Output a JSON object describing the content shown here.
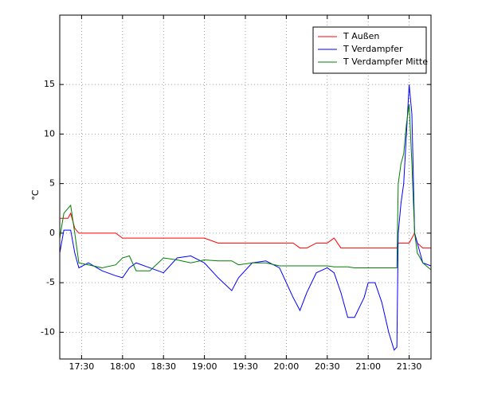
{
  "chart_data": {
    "type": "line",
    "y_label": "°C",
    "x": [
      "17:14",
      "17:17",
      "17:20",
      "17:22",
      "17:25",
      "17:28",
      "17:35",
      "17:45",
      "17:55",
      "18:00",
      "18:05",
      "18:10",
      "18:20",
      "18:30",
      "18:40",
      "18:50",
      "19:00",
      "19:10",
      "19:20",
      "19:25",
      "19:35",
      "19:45",
      "19:55",
      "20:00",
      "20:05",
      "20:10",
      "20:15",
      "20:22",
      "20:30",
      "20:35",
      "20:40",
      "20:45",
      "20:50",
      "20:57",
      "21:00",
      "21:05",
      "21:10",
      "21:15",
      "21:19",
      "21:21",
      "21:22",
      "21:24",
      "21:26",
      "21:28",
      "21:30",
      "21:32",
      "21:34",
      "21:36",
      "21:40",
      "21:46"
    ],
    "series": [
      {
        "name": "T Außen",
        "color": "#ff0000",
        "values": [
          1.5,
          1.5,
          1.5,
          2,
          0.5,
          0,
          0,
          0,
          0,
          -0.5,
          -0.5,
          -0.5,
          -0.5,
          -0.5,
          -0.5,
          -0.5,
          -0.5,
          -1,
          -1,
          -1,
          -1,
          -1,
          -1,
          -1,
          -1,
          -1.5,
          -1.5,
          -1,
          -1,
          -0.5,
          -1.5,
          -1.5,
          -1.5,
          -1.5,
          -1.5,
          -1.5,
          -1.5,
          -1.5,
          -1.5,
          -1.5,
          -1,
          -1,
          -1,
          -1,
          -1,
          -0.5,
          0,
          -1,
          -1.5,
          -1.5
        ]
      },
      {
        "name": "T Verdampfer",
        "color": "#0000ff",
        "values": [
          -2,
          0.3,
          0.3,
          0.3,
          -2,
          -3.5,
          -3,
          -3.8,
          -4.3,
          -4.5,
          -3.5,
          -3,
          -3.5,
          -4,
          -2.5,
          -2.3,
          -3,
          -4.5,
          -5.8,
          -4.5,
          -3,
          -2.8,
          -3.5,
          -5,
          -6.5,
          -7.8,
          -6,
          -4,
          -3.5,
          -4,
          -6,
          -8.5,
          -8.5,
          -6.5,
          -5,
          -5,
          -7,
          -10,
          -11.8,
          -11.5,
          0,
          3,
          5,
          10,
          15,
          12,
          0,
          -1,
          -3,
          -3.3
        ]
      },
      {
        "name": "T Verdampfer Mitte",
        "color": "#008000",
        "values": [
          -0.5,
          2,
          2.5,
          2.8,
          0,
          -3,
          -3.2,
          -3.5,
          -3.2,
          -2.5,
          -2.3,
          -3.8,
          -3.8,
          -2.5,
          -2.7,
          -3,
          -2.7,
          -2.8,
          -2.8,
          -3.2,
          -3,
          -3,
          -3.3,
          -3.3,
          -3.3,
          -3.3,
          -3.3,
          -3.3,
          -3.3,
          -3.4,
          -3.4,
          -3.4,
          -3.5,
          -3.5,
          -3.5,
          -3.5,
          -3.5,
          -3.5,
          -3.5,
          -3.5,
          5,
          7,
          8,
          11,
          13,
          7,
          0,
          -2,
          -3,
          -3.7
        ]
      }
    ],
    "xlim": [
      "17:14",
      "21:46"
    ],
    "xticks": [
      "17:30",
      "18:00",
      "18:30",
      "19:00",
      "19:30",
      "20:00",
      "20:30",
      "21:00",
      "21:30"
    ],
    "ylim": [
      -12.7,
      22
    ],
    "yticks": [
      -10,
      -5,
      0,
      5,
      10,
      15
    ],
    "grid": true,
    "legend": "upper right"
  }
}
